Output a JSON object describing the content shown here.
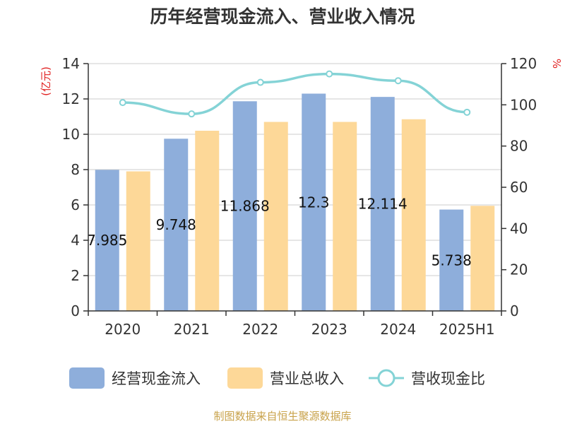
{
  "chart_data": {
    "type": "bar",
    "title": "历年经营现金流入、营业收入情况",
    "categories": [
      "2020",
      "2021",
      "2022",
      "2023",
      "2024",
      "2025H1"
    ],
    "series": [
      {
        "name": "经营现金流入",
        "type": "bar",
        "axis": "left",
        "color": "#8eaedb",
        "values": [
          7.985,
          9.748,
          11.868,
          12.3,
          12.114,
          5.738
        ],
        "labels": [
          "7.985",
          "9.748",
          "11.868",
          "12.3",
          "12.114",
          "5.738"
        ]
      },
      {
        "name": "营业总收入",
        "type": "bar",
        "axis": "left",
        "color": "#fdd898",
        "values": [
          7.9,
          10.2,
          10.7,
          10.7,
          10.85,
          5.95
        ]
      },
      {
        "name": "营收现金比",
        "type": "line",
        "axis": "right",
        "color": "#84d3d6",
        "values": [
          101.1,
          95.6,
          110.9,
          115.0,
          111.7,
          96.4
        ]
      }
    ],
    "y_left": {
      "label": "(亿元)",
      "min": 0,
      "max": 14,
      "ticks": [
        0,
        2,
        4,
        6,
        8,
        10,
        12,
        14
      ]
    },
    "y_right": {
      "label": "%",
      "min": 0,
      "max": 120,
      "ticks": [
        0,
        20,
        40,
        60,
        80,
        100,
        120
      ]
    },
    "grid": true,
    "legend_position": "bottom"
  },
  "footer": {
    "source": "制图数据来自恒生聚源数据库"
  }
}
